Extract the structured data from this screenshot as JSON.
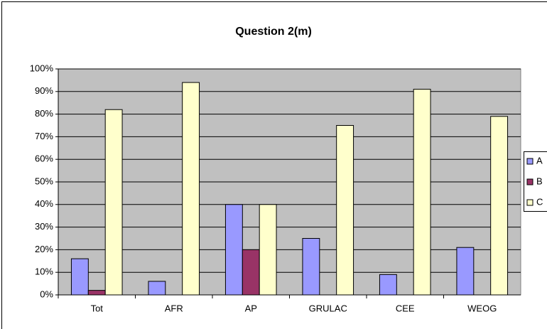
{
  "chart_data": {
    "type": "bar",
    "title": "Question 2(m)",
    "categories": [
      "Tot",
      "AFR",
      "AP",
      "GRULAC",
      "CEE",
      "WEOG"
    ],
    "series": [
      {
        "name": "A",
        "color": "#9999ff",
        "values": [
          16,
          6,
          40,
          25,
          9,
          21
        ]
      },
      {
        "name": "B",
        "color": "#993366",
        "values": [
          2,
          0,
          20,
          0,
          0,
          0
        ]
      },
      {
        "name": "C",
        "color": "#ffffcc",
        "values": [
          82,
          94,
          40,
          75,
          91,
          79
        ]
      }
    ],
    "ylim": [
      0,
      100
    ],
    "yticks": [
      {
        "value": 0,
        "label": "0%"
      },
      {
        "value": 10,
        "label": "10%"
      },
      {
        "value": 20,
        "label": "20%"
      },
      {
        "value": 30,
        "label": "30%"
      },
      {
        "value": 40,
        "label": "40%"
      },
      {
        "value": 50,
        "label": "50%"
      },
      {
        "value": 60,
        "label": "60%"
      },
      {
        "value": 70,
        "label": "70%"
      },
      {
        "value": 80,
        "label": "80%"
      },
      {
        "value": 90,
        "label": "90%"
      },
      {
        "value": 100,
        "label": "100%"
      }
    ],
    "grid": true,
    "legend": "right"
  }
}
